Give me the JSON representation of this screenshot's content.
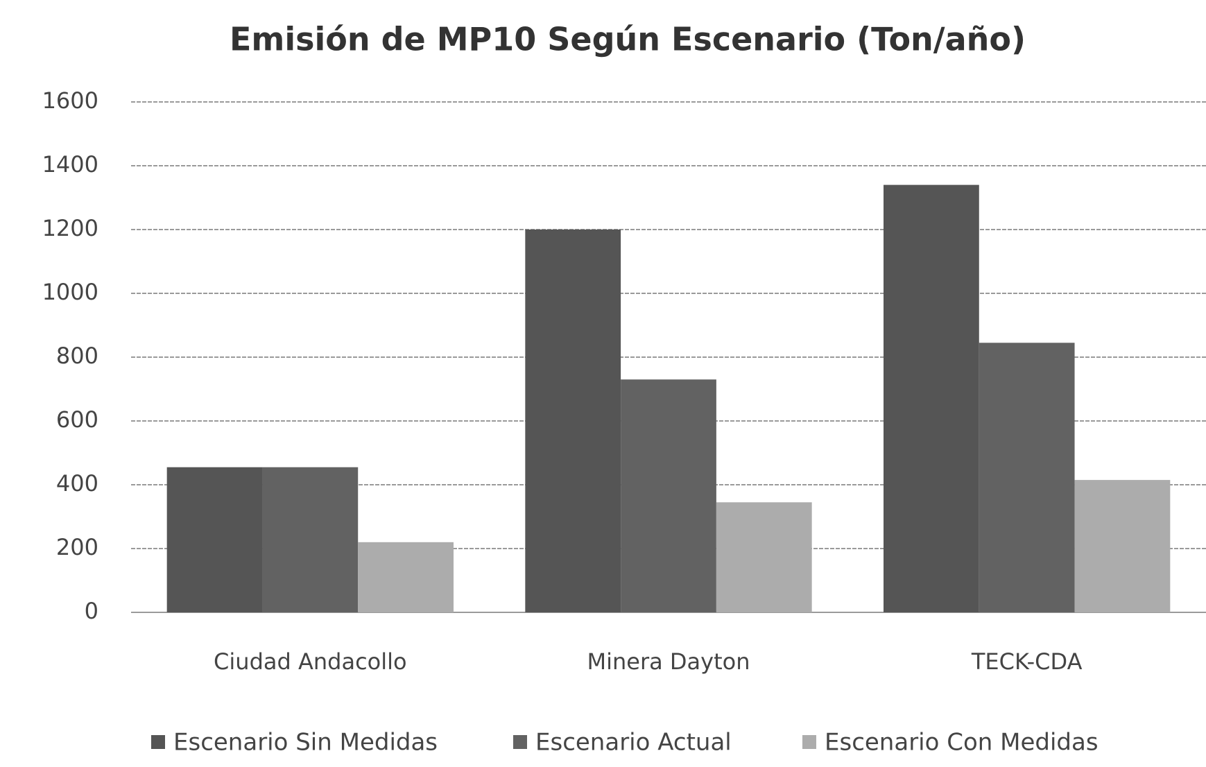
{
  "chart_data": {
    "type": "bar",
    "title": "Emisión de MP10 Según Escenario (Ton/año)",
    "categories": [
      "Ciudad Andacollo",
      "Minera Dayton",
      "TECK-CDA"
    ],
    "series": [
      {
        "name": "Escenario Sin Medidas",
        "color": "#555555",
        "values": [
          455,
          1200,
          1340
        ]
      },
      {
        "name": "Escenario Actual",
        "color": "#626262",
        "values": [
          455,
          730,
          845
        ]
      },
      {
        "name": "Escenario Con Medidas",
        "color": "#acacac",
        "values": [
          220,
          345,
          415
        ]
      }
    ],
    "ylim": [
      0,
      1600
    ],
    "yticks": [
      0,
      200,
      400,
      600,
      800,
      1000,
      1200,
      1400,
      1600
    ],
    "grid": true,
    "legend": "bottom"
  }
}
